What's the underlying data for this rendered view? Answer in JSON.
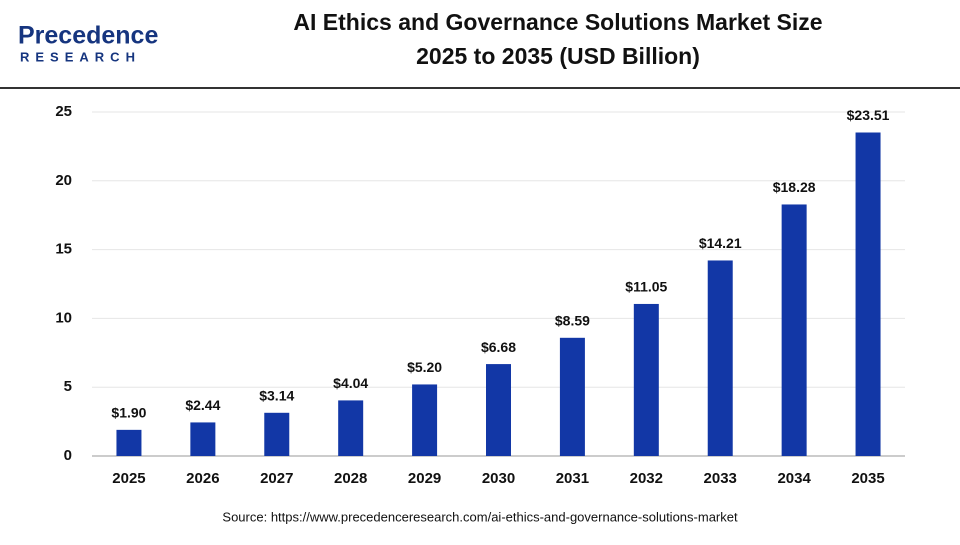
{
  "logo": {
    "name": "Precedence",
    "tagline": "RESEARCH"
  },
  "chart_data": {
    "type": "bar",
    "title_lines": [
      "AI Ethics and Governance Solutions Market Size",
      "2025 to 2035 (USD Billion)"
    ],
    "categories": [
      "2025",
      "2026",
      "2027",
      "2028",
      "2029",
      "2030",
      "2031",
      "2032",
      "2033",
      "2034",
      "2035"
    ],
    "values": [
      1.9,
      2.44,
      3.14,
      4.04,
      5.2,
      6.68,
      8.59,
      11.05,
      14.21,
      18.28,
      23.51
    ],
    "value_labels": [
      "$1.90",
      "$2.44",
      "$3.14",
      "$4.04",
      "$5.20",
      "$6.68",
      "$8.59",
      "$11.05",
      "$14.21",
      "$18.28",
      "$23.51"
    ],
    "color": "#1237a6",
    "ylim": [
      0,
      25
    ],
    "yticks": [
      0,
      5,
      10,
      15,
      20,
      25
    ],
    "grid": true,
    "source": "Source: https://www.precedenceresearch.com/ai-ethics-and-governance-solutions-market"
  }
}
